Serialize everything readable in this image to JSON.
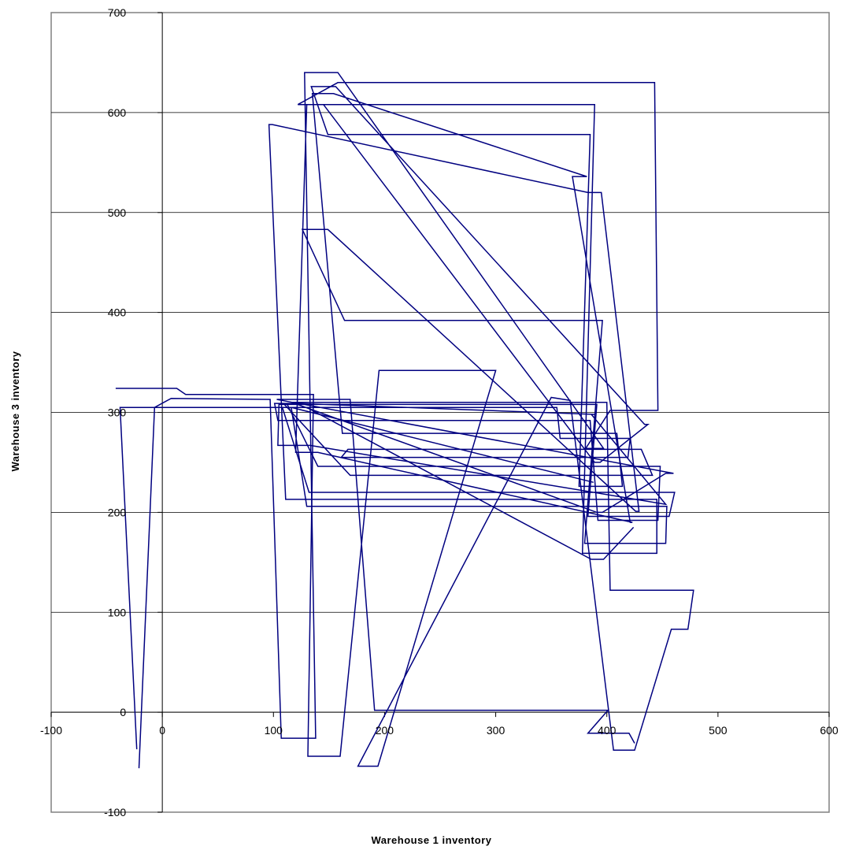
{
  "chart_data": {
    "type": "line",
    "title": "",
    "xlabel": "Warehouse 1 inventory",
    "ylabel": "Warehouse 3 inventory",
    "xlim": [
      -100,
      600
    ],
    "ylim": [
      -100,
      700
    ],
    "x_ticks": [
      "-100",
      "0",
      "100",
      "200",
      "300",
      "400",
      "500",
      "600"
    ],
    "y_ticks": [
      "-100",
      "0",
      "100",
      "200",
      "300",
      "400",
      "500",
      "600",
      "700"
    ],
    "grid": "horizontal",
    "legend": "none",
    "line_color": "#000080",
    "series": [
      {
        "x": [
          -21,
          -7,
          8,
          97,
          107,
          138,
          128,
          158,
          397,
          381,
          403,
          446,
          443,
          158,
          122,
          145,
          389,
          394,
          437,
          434,
          156,
          134,
          149,
          385,
          375,
          414,
          409,
          162,
          135,
          154,
          382,
          369,
          421,
          423,
          140,
          120,
          130,
          389,
          378,
          445,
          445,
          111,
          96,
          99,
          383,
          395,
          429,
          426,
          149,
          126,
          164,
          396,
          380,
          453,
          454,
          130,
          116,
          130,
          386,
          397,
          424,
          424
        ],
        "y": [
          -56,
          305,
          314,
          313,
          -26,
          -26,
          640,
          640,
          264,
          264,
          302,
          302,
          630,
          630,
          608,
          608,
          250,
          250,
          288,
          288,
          626,
          626,
          578,
          578,
          226,
          226,
          279,
          279,
          619,
          619,
          536,
          536,
          190,
          190,
          260,
          260,
          608,
          608,
          159,
          159,
          213,
          213,
          588,
          588,
          520,
          520,
          201,
          201,
          483,
          483,
          392,
          392,
          169,
          169,
          206,
          206,
          305,
          305,
          153,
          153,
          185,
          185
        ]
      },
      {
        "x": [
          -42,
          13,
          21,
          136,
          131,
          160,
          195,
          300,
          194,
          176,
          350,
          367,
          406,
          425,
          458,
          473,
          478,
          403,
          400,
          117,
          103,
          169,
          191,
          401,
          383,
          420,
          425
        ],
        "y": [
          324,
          324,
          318,
          318,
          -44,
          -44,
          342,
          342,
          -54,
          -54,
          315,
          312,
          -38,
          -38,
          83,
          83,
          122,
          122,
          310,
          310,
          313,
          313,
          2,
          2,
          -21,
          -21,
          -31
        ]
      },
      {
        "x": [
          -23,
          -38,
          -36,
          355,
          358,
          421,
          419,
          161,
          167,
          364,
          372,
          431,
          441,
          169,
          109,
          119,
          391,
          396,
          453,
          460,
          123,
          101,
          104,
          385,
          392,
          446,
          448,
          140,
          112,
          121,
          389,
          386,
          453,
          453,
          133,
          104,
          105,
          391,
          383,
          456,
          461,
          132,
          108,
          116,
          388,
          388
        ],
        "y": [
          -37,
          305,
          305,
          305,
          274,
          274,
          255,
          255,
          263,
          263,
          263,
          263,
          237,
          237,
          309,
          309,
          200,
          200,
          239,
          239,
          309,
          309,
          292,
          292,
          192,
          192,
          246,
          246,
          309,
          309,
          298,
          298,
          208,
          208,
          267,
          267,
          308,
          308,
          196,
          196,
          220,
          220,
          305,
          305,
          230,
          230
        ]
      }
    ]
  }
}
